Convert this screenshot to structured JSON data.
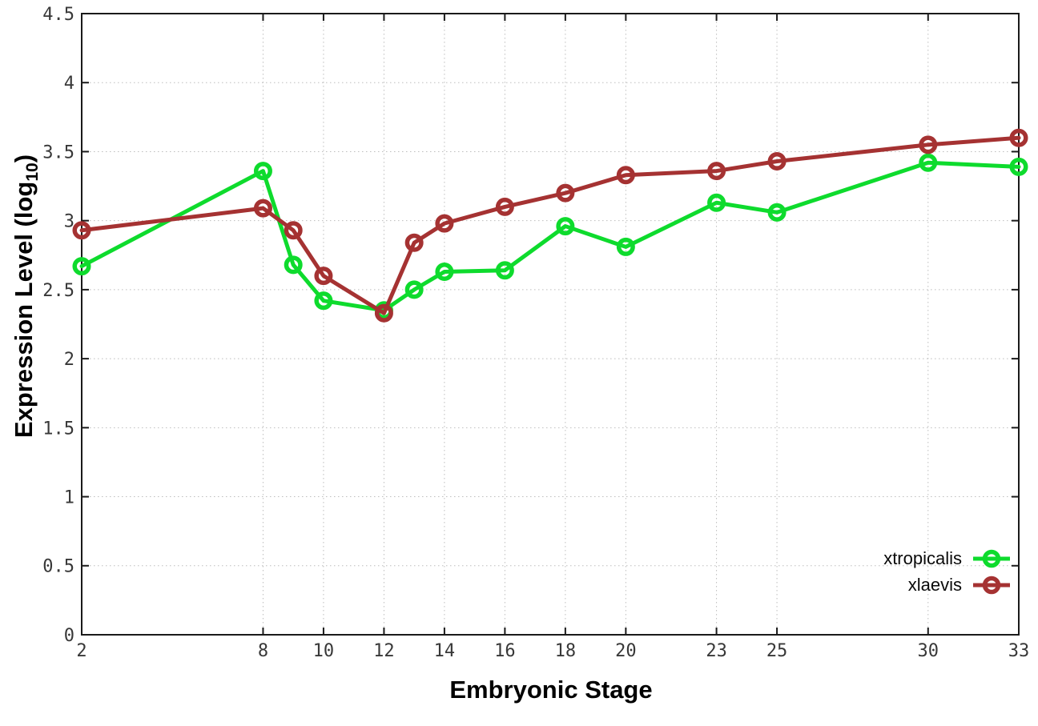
{
  "chart_data": {
    "type": "line",
    "title": "",
    "xlabel": "Embryonic Stage",
    "ylabel": "Expression Level (log10)",
    "ylabel_main": "Expression Level (log",
    "ylabel_sub": "10",
    "ylabel_close": ")",
    "xlim": [
      2,
      33
    ],
    "ylim": [
      0,
      4.5
    ],
    "x_ticks": [
      2,
      8,
      10,
      12,
      14,
      16,
      18,
      20,
      23,
      25,
      30,
      33
    ],
    "x_tick_labels": [
      "2",
      "8",
      "10",
      "12",
      "14",
      "16",
      "18",
      "20",
      "23",
      "25",
      "30",
      "33"
    ],
    "y_ticks": [
      0,
      0.5,
      1,
      1.5,
      2,
      2.5,
      3,
      3.5,
      4,
      4.5
    ],
    "y_tick_labels": [
      "0",
      "0.5",
      "1",
      "1.5",
      "2",
      "2.5",
      "3",
      "3.5",
      "4",
      "4.5"
    ],
    "grid": true,
    "grid_style": "dotted",
    "legend_position": "bottom-right-inside",
    "background_color": "#ffffff",
    "border_color": "#1a1a1a",
    "grid_color": "#bdbdbd",
    "x": [
      2,
      8,
      9,
      10,
      12,
      13,
      14,
      16,
      18,
      20,
      23,
      25,
      30,
      33
    ],
    "series": [
      {
        "name": "xtropicalis",
        "color": "#0edb2d",
        "marker": "open-circle",
        "values": [
          2.67,
          3.36,
          2.68,
          2.42,
          2.35,
          2.5,
          2.63,
          2.64,
          2.96,
          2.81,
          3.13,
          3.06,
          3.42,
          3.39
        ]
      },
      {
        "name": "xlaevis",
        "color": "#a53232",
        "marker": "open-circle",
        "values": [
          2.93,
          3.09,
          2.93,
          2.6,
          2.33,
          2.84,
          2.98,
          3.1,
          3.2,
          3.33,
          3.36,
          3.43,
          3.55,
          3.6
        ]
      }
    ]
  }
}
